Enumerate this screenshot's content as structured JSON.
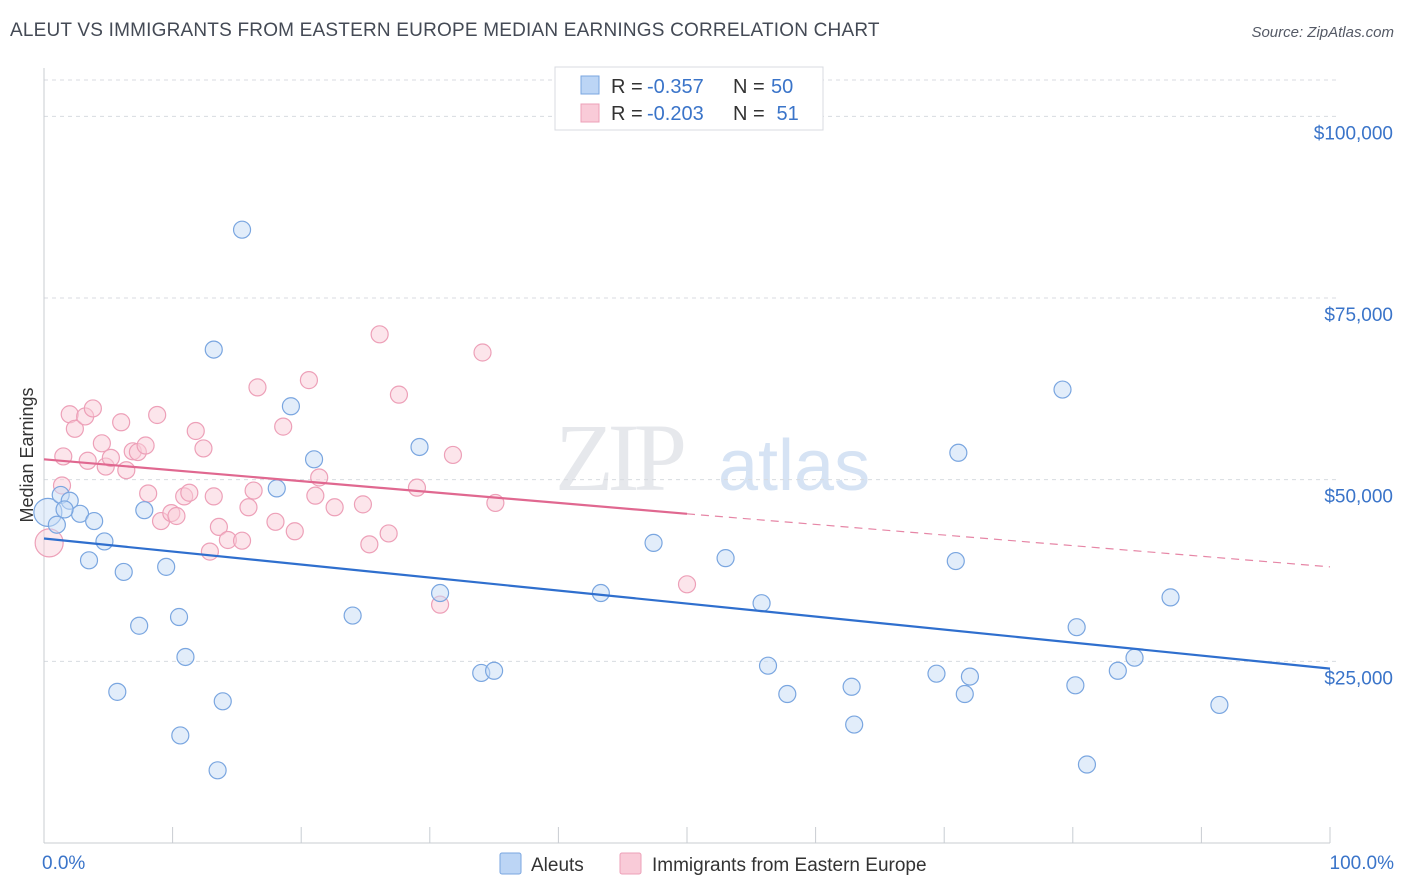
{
  "title": "ALEUT VS IMMIGRANTS FROM EASTERN EUROPE MEDIAN EARNINGS CORRELATION CHART",
  "source": "Source: ZipAtlas.com",
  "watermark": {
    "zip": "ZIP",
    "atlas": "atlas"
  },
  "legend": {
    "rows": [
      {
        "r_label": "R = ",
        "r_value": "-0.357",
        "n_label": "N = ",
        "n_value": "50"
      },
      {
        "r_label": "R = ",
        "r_value": "-0.203",
        "n_label": "N = ",
        "n_value": " 51"
      }
    ]
  },
  "chart_data": {
    "type": "scatter",
    "title": "ALEUT VS IMMIGRANTS FROM EASTERN EUROPE MEDIAN EARNINGS CORRELATION CHART",
    "xlabel": "",
    "ylabel": "Median Earnings",
    "xlim": [
      0,
      100
    ],
    "ylim": [
      0,
      105000
    ],
    "x_tick_labels": [
      "0.0%",
      "100.0%"
    ],
    "y_ticks": [
      25000,
      50000,
      75000,
      100000
    ],
    "y_tick_labels": [
      "$25,000",
      "$50,000",
      "$75,000",
      "$100,000"
    ],
    "grid": "horizontal dashed",
    "colors": {
      "aleut": "#6fa0e0",
      "aleut_line": "#2f6fce",
      "immigrants": "#f0a0b8",
      "immigrants_line": "#e06890"
    },
    "series": [
      {
        "name": "Aleuts",
        "points": [
          [
            0.3,
            45500
          ],
          [
            1.0,
            43800
          ],
          [
            1.3,
            47900
          ],
          [
            2.0,
            47100
          ],
          [
            2.8,
            45300
          ],
          [
            3.5,
            38900
          ],
          [
            3.9,
            44300
          ],
          [
            4.7,
            41500
          ],
          [
            5.7,
            20800
          ],
          [
            6.2,
            37300
          ],
          [
            7.4,
            29900
          ],
          [
            7.8,
            45800
          ],
          [
            9.5,
            38000
          ],
          [
            10.5,
            31100
          ],
          [
            10.6,
            14800
          ],
          [
            11.0,
            25600
          ],
          [
            13.5,
            10000
          ],
          [
            13.9,
            19500
          ],
          [
            13.2,
            67900
          ],
          [
            15.4,
            84400
          ],
          [
            18.1,
            48800
          ],
          [
            19.2,
            60100
          ],
          [
            21.0,
            52800
          ],
          [
            24.0,
            31300
          ],
          [
            29.2,
            54500
          ],
          [
            30.8,
            34400
          ],
          [
            34.0,
            23400
          ],
          [
            35.0,
            23700
          ],
          [
            43.3,
            34400
          ],
          [
            47.4,
            41300
          ],
          [
            53.0,
            39200
          ],
          [
            55.8,
            33000
          ],
          [
            56.3,
            24400
          ],
          [
            57.8,
            20500
          ],
          [
            62.8,
            21500
          ],
          [
            63.0,
            16300
          ],
          [
            69.4,
            23300
          ],
          [
            70.9,
            38800
          ],
          [
            71.1,
            53700
          ],
          [
            71.6,
            20500
          ],
          [
            72.0,
            22900
          ],
          [
            79.2,
            62400
          ],
          [
            80.2,
            21700
          ],
          [
            80.3,
            29700
          ],
          [
            81.1,
            10800
          ],
          [
            83.5,
            23700
          ],
          [
            84.8,
            25500
          ],
          [
            87.6,
            33800
          ],
          [
            91.4,
            19000
          ],
          [
            1.6,
            45900
          ]
        ]
      },
      {
        "name": "Immigrants from Eastern Europe",
        "points": [
          [
            0.4,
            41300
          ],
          [
            1.4,
            49200
          ],
          [
            1.5,
            53200
          ],
          [
            2.0,
            59000
          ],
          [
            2.4,
            57000
          ],
          [
            3.2,
            58700
          ],
          [
            3.4,
            52600
          ],
          [
            3.8,
            59800
          ],
          [
            4.5,
            55000
          ],
          [
            4.8,
            51800
          ],
          [
            5.2,
            53000
          ],
          [
            6.0,
            57900
          ],
          [
            6.4,
            51300
          ],
          [
            6.9,
            53900
          ],
          [
            7.3,
            53800
          ],
          [
            7.9,
            54700
          ],
          [
            8.1,
            48100
          ],
          [
            8.8,
            58900
          ],
          [
            9.1,
            44300
          ],
          [
            9.9,
            45400
          ],
          [
            10.3,
            45000
          ],
          [
            10.9,
            47700
          ],
          [
            11.3,
            48200
          ],
          [
            11.8,
            56700
          ],
          [
            12.4,
            54300
          ],
          [
            12.9,
            40100
          ],
          [
            13.2,
            47700
          ],
          [
            13.6,
            43500
          ],
          [
            14.3,
            41700
          ],
          [
            15.4,
            41600
          ],
          [
            15.9,
            46200
          ],
          [
            16.3,
            48500
          ],
          [
            16.6,
            62700
          ],
          [
            18.0,
            44200
          ],
          [
            18.6,
            57300
          ],
          [
            19.5,
            42900
          ],
          [
            20.6,
            63700
          ],
          [
            21.1,
            47800
          ],
          [
            21.4,
            50300
          ],
          [
            22.6,
            46200
          ],
          [
            24.8,
            46600
          ],
          [
            25.3,
            41100
          ],
          [
            26.1,
            70000
          ],
          [
            26.8,
            42600
          ],
          [
            27.6,
            61700
          ],
          [
            29.0,
            48900
          ],
          [
            30.8,
            32800
          ],
          [
            31.8,
            53400
          ],
          [
            34.1,
            67500
          ],
          [
            35.1,
            46800
          ],
          [
            50.0,
            35600
          ]
        ]
      }
    ],
    "trend_lines": [
      {
        "name": "Aleuts",
        "x": [
          0,
          100
        ],
        "y": [
          41900,
          24000
        ],
        "style": "solid"
      },
      {
        "name": "Immigrants from Eastern Europe",
        "x": [
          0,
          50
        ],
        "y": [
          52800,
          45300
        ],
        "style": "solid"
      },
      {
        "name": "Immigrants from Eastern Europe",
        "x": [
          50,
          100
        ],
        "y": [
          45300,
          38000
        ],
        "style": "dashed"
      }
    ]
  }
}
